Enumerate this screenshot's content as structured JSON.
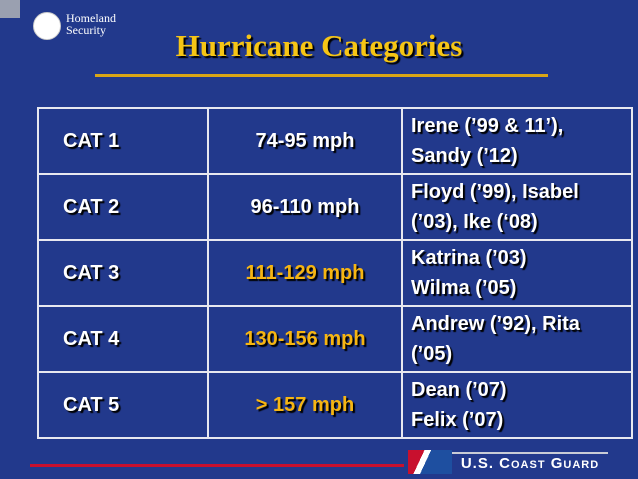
{
  "header": {
    "agency": "Homeland Security",
    "title": "Hurricane Categories"
  },
  "table": {
    "rows": [
      [
        "CAT 1",
        "74-95 mph",
        [
          "Irene (’99 & 11’),",
          "Sandy (’12)"
        ]
      ],
      [
        "CAT 2",
        "96-110 mph",
        [
          "Floyd (’99), Isabel",
          "(’03), Ike (‘08)"
        ]
      ],
      [
        "CAT 3",
        "111-129 mph",
        [
          "Katrina (’03)",
          "Wilma (’05)"
        ]
      ],
      [
        "CAT 4",
        "130-156 mph",
        [
          "Andrew (’92), Rita",
          "(’05)"
        ]
      ],
      [
        "CAT 5",
        "> 157 mph",
        [
          "Dean (’07)",
          "Felix (’07)"
        ]
      ]
    ]
  },
  "footer": {
    "organization": "U.S. Coast Guard"
  }
}
